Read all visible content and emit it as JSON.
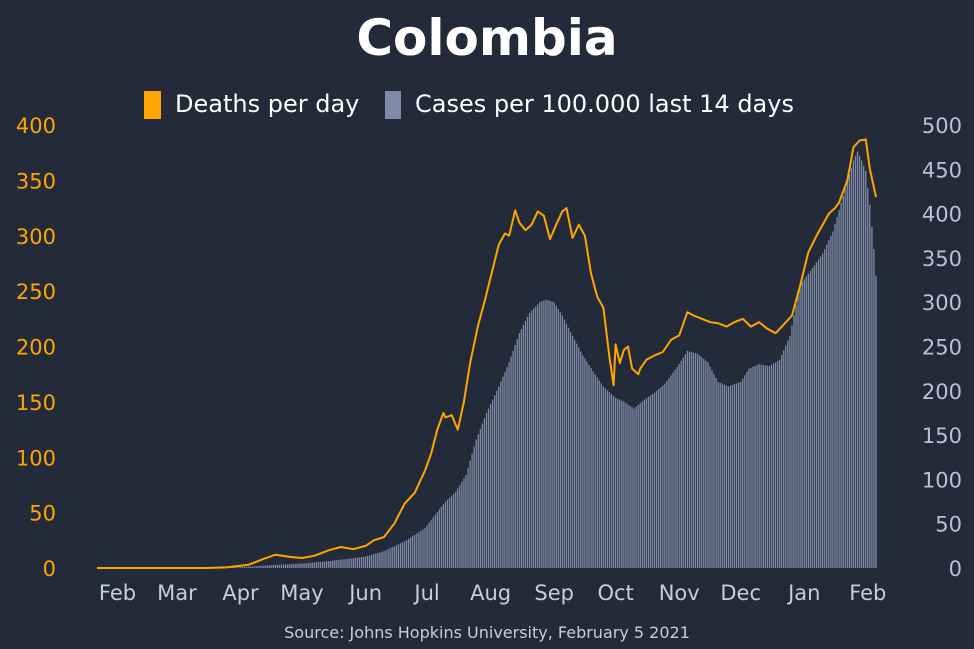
{
  "colors": {
    "background": "#232b3b",
    "deaths": "#ffa500",
    "cases": "#7f8ba6",
    "text": "#ffffff",
    "right_axis_text": "#b9c1d2",
    "tick_text": "#c9cdd6"
  },
  "chart_data": {
    "type": "bar-line combo",
    "title": "Colombia",
    "source": "Source: Johns Hopkins University, February 5 2021",
    "legend": {
      "placement": "top-center",
      "entries": [
        "Deaths per day",
        "Cases per 100.000 last 14 days"
      ]
    },
    "x_axis": {
      "ticks": [
        "Feb",
        "Mar",
        "Apr",
        "May",
        "Jun",
        "Jul",
        "Aug",
        "Sep",
        "Oct",
        "Nov",
        "Dec",
        "Jan",
        "Feb"
      ],
      "tick_dates": [
        "2020-02-01",
        "2020-03-01",
        "2020-04-01",
        "2020-05-01",
        "2020-06-01",
        "2020-07-01",
        "2020-08-01",
        "2020-09-01",
        "2020-10-01",
        "2020-11-01",
        "2020-12-01",
        "2021-01-01",
        "2021-02-01"
      ],
      "range": [
        "2020-01-22",
        "2021-02-05"
      ]
    },
    "y_left": {
      "label": "",
      "range": [
        0,
        400
      ],
      "ticks": [
        "0",
        "50",
        "100",
        "150",
        "200",
        "250",
        "300",
        "350",
        "400"
      ]
    },
    "y_right": {
      "label": "",
      "range": [
        0,
        500
      ],
      "ticks": [
        "0",
        "50",
        "100",
        "150",
        "200",
        "250",
        "300",
        "350",
        "400",
        "450",
        "500"
      ]
    },
    "grid": false,
    "series": [
      {
        "name": "Deaths per day",
        "type": "line",
        "axis": "left",
        "points": [
          [
            "2020-01-22",
            0
          ],
          [
            "2020-03-15",
            0
          ],
          [
            "2020-03-25",
            0.5
          ],
          [
            "2020-04-05",
            3
          ],
          [
            "2020-04-12",
            8
          ],
          [
            "2020-04-18",
            12
          ],
          [
            "2020-04-25",
            10
          ],
          [
            "2020-05-01",
            9
          ],
          [
            "2020-05-07",
            11
          ],
          [
            "2020-05-14",
            16
          ],
          [
            "2020-05-20",
            19
          ],
          [
            "2020-05-26",
            17
          ],
          [
            "2020-06-01",
            20
          ],
          [
            "2020-06-05",
            25
          ],
          [
            "2020-06-10",
            28
          ],
          [
            "2020-06-15",
            40
          ],
          [
            "2020-06-20",
            58
          ],
          [
            "2020-06-25",
            68
          ],
          [
            "2020-06-30",
            88
          ],
          [
            "2020-07-03",
            103
          ],
          [
            "2020-07-06",
            125
          ],
          [
            "2020-07-09",
            140
          ],
          [
            "2020-07-10",
            136
          ],
          [
            "2020-07-13",
            138
          ],
          [
            "2020-07-16",
            125
          ],
          [
            "2020-07-19",
            150
          ],
          [
            "2020-07-22",
            185
          ],
          [
            "2020-07-26",
            220
          ],
          [
            "2020-07-29",
            240
          ],
          [
            "2020-08-02",
            270
          ],
          [
            "2020-08-05",
            292
          ],
          [
            "2020-08-08",
            302
          ],
          [
            "2020-08-10",
            300
          ],
          [
            "2020-08-13",
            323
          ],
          [
            "2020-08-15",
            312
          ],
          [
            "2020-08-18",
            305
          ],
          [
            "2020-08-21",
            310
          ],
          [
            "2020-08-24",
            322
          ],
          [
            "2020-08-27",
            318
          ],
          [
            "2020-08-30",
            297
          ],
          [
            "2020-09-02",
            310
          ],
          [
            "2020-09-05",
            322
          ],
          [
            "2020-09-07",
            325
          ],
          [
            "2020-09-10",
            298
          ],
          [
            "2020-09-13",
            310
          ],
          [
            "2020-09-16",
            300
          ],
          [
            "2020-09-19",
            266
          ],
          [
            "2020-09-22",
            245
          ],
          [
            "2020-09-25",
            235
          ],
          [
            "2020-09-28",
            190
          ],
          [
            "2020-09-30",
            165
          ],
          [
            "2020-10-01",
            202
          ],
          [
            "2020-10-03",
            185
          ],
          [
            "2020-10-05",
            197
          ],
          [
            "2020-10-07",
            200
          ],
          [
            "2020-10-09",
            180
          ],
          [
            "2020-10-12",
            175
          ],
          [
            "2020-10-13",
            180
          ],
          [
            "2020-10-16",
            188
          ],
          [
            "2020-10-20",
            192
          ],
          [
            "2020-10-24",
            195
          ],
          [
            "2020-10-28",
            206
          ],
          [
            "2020-11-01",
            210
          ],
          [
            "2020-11-05",
            231
          ],
          [
            "2020-11-08",
            228
          ],
          [
            "2020-11-12",
            225
          ],
          [
            "2020-11-16",
            222
          ],
          [
            "2020-11-20",
            221
          ],
          [
            "2020-11-24",
            218
          ],
          [
            "2020-11-28",
            222
          ],
          [
            "2020-12-02",
            225
          ],
          [
            "2020-12-06",
            218
          ],
          [
            "2020-12-10",
            222
          ],
          [
            "2020-12-14",
            216
          ],
          [
            "2020-12-18",
            212
          ],
          [
            "2020-12-22",
            220
          ],
          [
            "2020-12-26",
            228
          ],
          [
            "2020-12-30",
            255
          ],
          [
            "2021-01-03",
            285
          ],
          [
            "2021-01-07",
            300
          ],
          [
            "2021-01-10",
            310
          ],
          [
            "2021-01-13",
            320
          ],
          [
            "2021-01-16",
            325
          ],
          [
            "2021-01-18",
            330
          ],
          [
            "2021-01-20",
            340
          ],
          [
            "2021-01-22",
            350
          ],
          [
            "2021-01-25",
            380
          ],
          [
            "2021-01-28",
            386
          ],
          [
            "2021-01-31",
            387
          ],
          [
            "2021-02-02",
            360
          ],
          [
            "2021-02-05",
            335
          ]
        ]
      },
      {
        "name": "Cases per 100.000 last 14 days",
        "type": "bar",
        "axis": "right",
        "points": [
          [
            "2020-01-22",
            0
          ],
          [
            "2020-03-15",
            0
          ],
          [
            "2020-04-01",
            1
          ],
          [
            "2020-04-15",
            3
          ],
          [
            "2020-05-01",
            5
          ],
          [
            "2020-05-15",
            8
          ],
          [
            "2020-06-01",
            13
          ],
          [
            "2020-06-10",
            19
          ],
          [
            "2020-06-20",
            30
          ],
          [
            "2020-06-30",
            45
          ],
          [
            "2020-07-05",
            60
          ],
          [
            "2020-07-10",
            75
          ],
          [
            "2020-07-15",
            86
          ],
          [
            "2020-07-20",
            105
          ],
          [
            "2020-07-25",
            145
          ],
          [
            "2020-07-30",
            175
          ],
          [
            "2020-08-05",
            205
          ],
          [
            "2020-08-10",
            232
          ],
          [
            "2020-08-15",
            265
          ],
          [
            "2020-08-20",
            288
          ],
          [
            "2020-08-25",
            300
          ],
          [
            "2020-08-28",
            303
          ],
          [
            "2020-09-01",
            300
          ],
          [
            "2020-09-05",
            285
          ],
          [
            "2020-09-10",
            262
          ],
          [
            "2020-09-15",
            240
          ],
          [
            "2020-09-20",
            222
          ],
          [
            "2020-09-25",
            205
          ],
          [
            "2020-10-01",
            192
          ],
          [
            "2020-10-05",
            188
          ],
          [
            "2020-10-10",
            180
          ],
          [
            "2020-10-15",
            190
          ],
          [
            "2020-10-20",
            198
          ],
          [
            "2020-10-25",
            208
          ],
          [
            "2020-11-01",
            230
          ],
          [
            "2020-11-05",
            245
          ],
          [
            "2020-11-10",
            242
          ],
          [
            "2020-11-15",
            232
          ],
          [
            "2020-11-20",
            210
          ],
          [
            "2020-11-25",
            205
          ],
          [
            "2020-12-01",
            210
          ],
          [
            "2020-12-05",
            225
          ],
          [
            "2020-12-10",
            230
          ],
          [
            "2020-12-15",
            228
          ],
          [
            "2020-12-20",
            235
          ],
          [
            "2020-12-25",
            262
          ],
          [
            "2020-12-30",
            320
          ],
          [
            "2021-01-03",
            332
          ],
          [
            "2021-01-07",
            345
          ],
          [
            "2021-01-10",
            355
          ],
          [
            "2021-01-15",
            380
          ],
          [
            "2021-01-20",
            420
          ],
          [
            "2021-01-25",
            460
          ],
          [
            "2021-01-27",
            470
          ],
          [
            "2021-01-29",
            460
          ],
          [
            "2021-01-31",
            448
          ],
          [
            "2021-02-02",
            410
          ],
          [
            "2021-02-04",
            360
          ],
          [
            "2021-02-05",
            330
          ]
        ]
      }
    ]
  }
}
